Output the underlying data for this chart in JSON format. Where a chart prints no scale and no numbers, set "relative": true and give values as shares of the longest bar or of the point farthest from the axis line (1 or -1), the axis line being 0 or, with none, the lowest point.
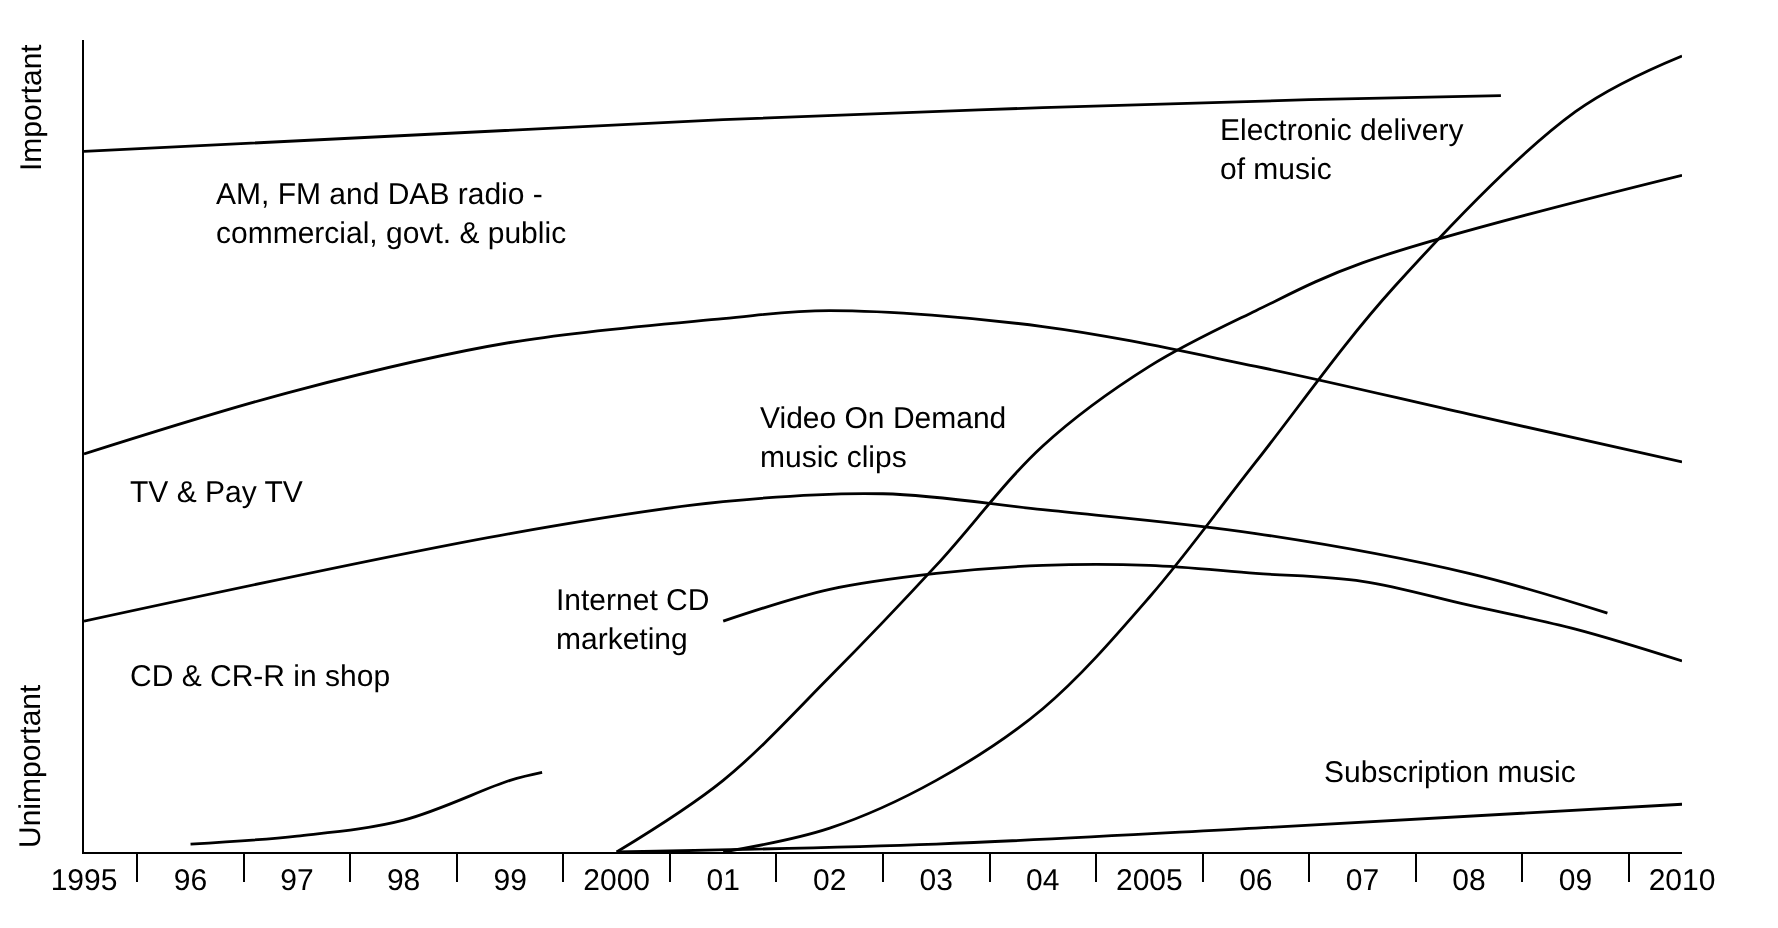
{
  "chart_data": {
    "type": "line",
    "relative": true,
    "legend": false,
    "marker": "none",
    "line_style": "solid",
    "annotations": [
      "Important",
      "Unimportant"
    ],
    "xlim": [
      1995,
      2010
    ],
    "xticks": [
      1995,
      {
        "value": 1996,
        "label": "96"
      },
      {
        "value": 1997,
        "label": "97"
      },
      {
        "value": 1998,
        "label": "98"
      },
      {
        "value": 1999,
        "label": "99"
      },
      2000,
      {
        "value": 2001,
        "label": "01"
      },
      {
        "value": 2002,
        "label": "02"
      },
      {
        "value": 2003,
        "label": "03"
      },
      {
        "value": 2004,
        "label": "04"
      },
      2005,
      {
        "value": 2006,
        "label": "06"
      },
      {
        "value": 2007,
        "label": "07"
      },
      {
        "value": 2008,
        "label": "08"
      },
      {
        "value": 2009,
        "label": "09"
      },
      2010
    ],
    "series": [
      {
        "name": "AM, FM and DAB radio -\ncommercial, govt. & public",
        "color": "#000000",
        "x": [
          1995,
          2001,
          2004,
          2006.5,
          2008.3
        ],
        "values": [
          0.88,
          0.92,
          0.935,
          0.945,
          0.95
        ]
      },
      {
        "name": "TV & Pay TV",
        "color": "#000000",
        "x": [
          1995,
          1997,
          1999,
          2001,
          2002,
          2004,
          2006,
          2008,
          2010
        ],
        "values": [
          0.5,
          0.58,
          0.64,
          0.67,
          0.68,
          0.66,
          0.61,
          0.55,
          0.49
        ]
      },
      {
        "name": "CD & CR-R in shop",
        "color": "#000000",
        "x": [
          1995,
          1999,
          2001,
          2002.5,
          2004,
          2006,
          2008,
          2009.3
        ],
        "values": [
          0.29,
          0.4,
          0.44,
          0.45,
          0.43,
          0.4,
          0.35,
          0.3
        ]
      },
      {
        "name": "Internet CD\nmarketing",
        "color": "#000000",
        "x": [
          1996,
          1997,
          1998,
          1999,
          1999.3,
          2000,
          2001,
          2002,
          2003,
          2004,
          2005,
          2006,
          2007,
          2008,
          2009,
          2010
        ],
        "values": [
          0.01,
          0.02,
          0.04,
          0.09,
          0.1,
          null,
          0.29,
          0.33,
          0.35,
          0.36,
          0.36,
          0.35,
          0.34,
          0.31,
          0.28,
          0.24
        ]
      },
      {
        "name": "Video On Demand\nmusic clips",
        "color": "#000000",
        "x": [
          2000,
          2001,
          2002,
          2003,
          2004,
          2005,
          2006,
          2007,
          2010
        ],
        "values": [
          0.0,
          0.09,
          0.22,
          0.36,
          0.51,
          0.61,
          0.68,
          0.74,
          0.85
        ]
      },
      {
        "name": "Electronic delivery\nof music",
        "color": "#000000",
        "x": [
          2001,
          2002,
          2003,
          2004,
          2005,
          2006,
          2007.3,
          2009,
          2010
        ],
        "values": [
          0.0,
          0.03,
          0.09,
          0.18,
          0.32,
          0.49,
          0.71,
          0.93,
          1.0
        ]
      },
      {
        "name": "Subscription music",
        "color": "#000000",
        "x": [
          2000,
          2003,
          2006,
          2010
        ],
        "values": [
          0.0,
          0.01,
          0.03,
          0.06
        ]
      }
    ]
  }
}
